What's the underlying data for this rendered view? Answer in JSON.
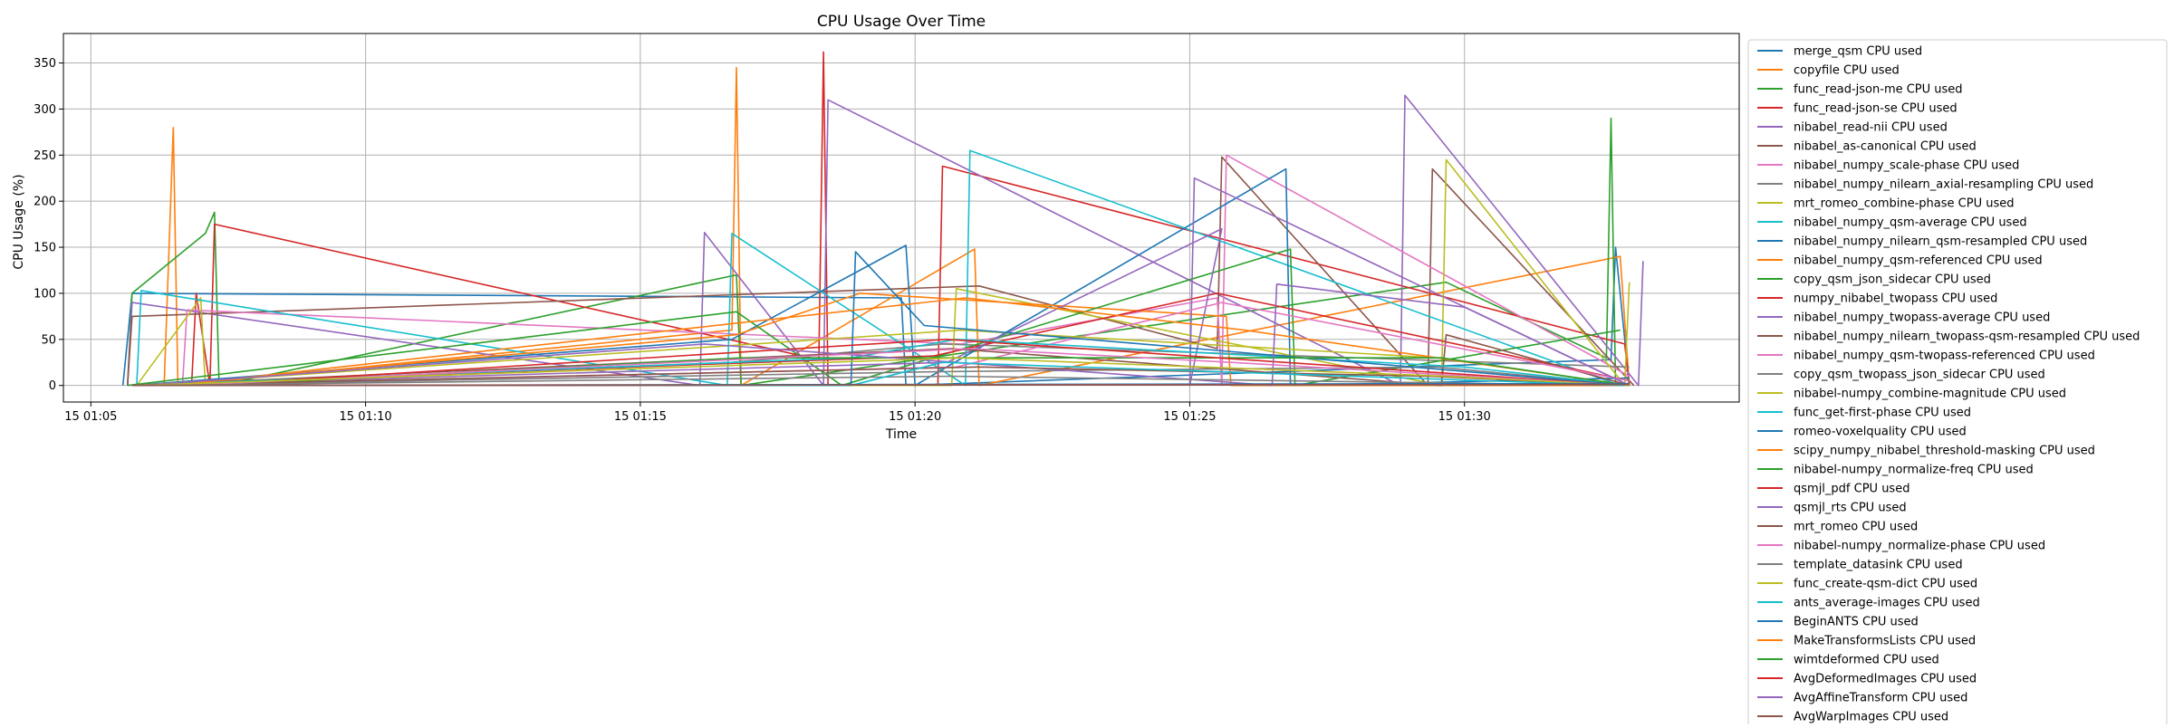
{
  "chart_data": {
    "type": "line",
    "title": "CPU Usage Over Time",
    "xlabel": "Time",
    "ylabel": "CPU Usage (%)",
    "xlim": [
      "2024-01-15T01:04:30",
      "2024-01-15T01:35:00"
    ],
    "ylim": [
      -18,
      382
    ],
    "x_ticks": [
      {
        "t": "2024-01-15T01:05:00",
        "label": "15 01:05"
      },
      {
        "t": "2024-01-15T01:10:00",
        "label": "15 01:10"
      },
      {
        "t": "2024-01-15T01:15:00",
        "label": "15 01:15"
      },
      {
        "t": "2024-01-15T01:20:00",
        "label": "15 01:20"
      },
      {
        "t": "2024-01-15T01:25:00",
        "label": "15 01:25"
      },
      {
        "t": "2024-01-15T01:30:00",
        "label": "15 01:30"
      }
    ],
    "y_ticks": [
      0,
      50,
      100,
      150,
      200,
      250,
      300,
      350
    ],
    "grid": true,
    "legend": "outside right, top",
    "series": [
      {
        "name": "merge_qsm CPU used",
        "color": "#1f77b4",
        "x": [
          "2024-01-15T01:05:35",
          "2024-01-15T01:05:45",
          "2024-01-15T01:19:45",
          "2024-01-15T01:19:50",
          "2024-01-15T01:32:40",
          "2024-01-15T01:32:45",
          "2024-01-15T01:33:00"
        ],
        "y": [
          0,
          100,
          95,
          0,
          28,
          150,
          0
        ]
      },
      {
        "name": "copyfile CPU used",
        "color": "#ff7f0e",
        "x": [
          "2024-01-15T01:06:20",
          "2024-01-15T01:06:25",
          "2024-01-15T01:06:30",
          "2024-01-15T01:06:35",
          "2024-01-15T01:16:40",
          "2024-01-15T01:16:45",
          "2024-01-15T01:16:50",
          "2024-01-15T01:21:05",
          "2024-01-15T01:21:10",
          "2024-01-15T01:32:50",
          "2024-01-15T01:33:00"
        ],
        "y": [
          0,
          140,
          280,
          0,
          60,
          345,
          0,
          148,
          0,
          140,
          0
        ]
      },
      {
        "name": "func_read-json-me CPU used",
        "color": "#2ca02c",
        "x": [
          "2024-01-15T01:05:40",
          "2024-01-15T01:05:45",
          "2024-01-15T01:07:05",
          "2024-01-15T01:07:15",
          "2024-01-15T01:07:20",
          "2024-01-15T01:16:45",
          "2024-01-15T01:16:50",
          "2024-01-15T01:29:40",
          "2024-01-15T01:32:35",
          "2024-01-15T01:32:40",
          "2024-01-15T01:32:45"
        ],
        "y": [
          0,
          100,
          165,
          188,
          0,
          120,
          0,
          112,
          30,
          290,
          0
        ]
      },
      {
        "name": "func_read-json-se CPU used",
        "color": "#d62728",
        "x": [
          "2024-01-15T01:06:50",
          "2024-01-15T01:06:55",
          "2024-01-15T01:07:10",
          "2024-01-15T01:07:15",
          "2024-01-15T01:18:15",
          "2024-01-15T01:18:20",
          "2024-01-15T01:18:25",
          "2024-01-15T01:20:25",
          "2024-01-15T01:20:30",
          "2024-01-15T01:32:55",
          "2024-01-15T01:33:00"
        ],
        "y": [
          0,
          100,
          0,
          175,
          28,
          362,
          0,
          0,
          238,
          45,
          0
        ]
      },
      {
        "name": "nibabel_read-nii CPU used",
        "color": "#9467bd",
        "x": [
          "2024-01-15T01:05:40",
          "2024-01-15T01:05:45",
          "2024-01-15T01:16:05",
          "2024-01-15T01:16:10",
          "2024-01-15T01:18:20",
          "2024-01-15T01:18:25",
          "2024-01-15T01:28:50",
          "2024-01-15T01:28:55",
          "2024-01-15T01:33:10",
          "2024-01-15T01:33:15"
        ],
        "y": [
          0,
          90,
          0,
          166,
          0,
          310,
          0,
          315,
          0,
          135
        ]
      },
      {
        "name": "nibabel_as-canonical CPU used",
        "color": "#8c564b",
        "x": [
          "2024-01-15T01:05:40",
          "2024-01-15T01:05:45",
          "2024-01-15T01:21:10",
          "2024-01-15T01:25:30",
          "2024-01-15T01:25:35",
          "2024-01-15T01:29:20",
          "2024-01-15T01:29:25",
          "2024-01-15T01:33:05"
        ],
        "y": [
          0,
          75,
          108,
          40,
          248,
          0,
          235,
          0
        ]
      },
      {
        "name": "nibabel_numpy_scale-phase CPU used",
        "color": "#e377c2",
        "x": [
          "2024-01-15T01:06:40",
          "2024-01-15T01:06:45",
          "2024-01-15T01:20:50",
          "2024-01-15T01:25:30",
          "2024-01-15T01:25:35",
          "2024-01-15T01:25:40",
          "2024-01-15T01:33:00"
        ],
        "y": [
          0,
          82,
          45,
          95,
          0,
          250,
          10
        ]
      },
      {
        "name": "nibabel_numpy_nilearn_axial-resampling CPU used",
        "color": "#7f7f7f",
        "x": [
          "2024-01-15T01:05:50",
          "2024-01-15T01:16:40",
          "2024-01-15T01:20:30",
          "2024-01-15T01:33:00"
        ],
        "y": [
          0,
          25,
          45,
          20
        ]
      },
      {
        "name": "mrt_romeo_combine-phase CPU used",
        "color": "#bcbd22",
        "x": [
          "2024-01-15T01:05:50",
          "2024-01-15T01:07:00",
          "2024-01-15T01:07:05",
          "2024-01-15T01:20:40",
          "2024-01-15T01:20:45",
          "2024-01-15T01:29:35",
          "2024-01-15T01:29:40",
          "2024-01-15T01:32:55",
          "2024-01-15T01:33:00"
        ],
        "y": [
          0,
          95,
          0,
          0,
          105,
          0,
          245,
          0,
          112
        ]
      },
      {
        "name": "nibabel_numpy_qsm-average CPU used",
        "color": "#17becf",
        "x": [
          "2024-01-15T01:05:50",
          "2024-01-15T01:05:55",
          "2024-01-15T01:16:35",
          "2024-01-15T01:16:40",
          "2024-01-15T01:20:55",
          "2024-01-15T01:21:00",
          "2024-01-15T01:32:50"
        ],
        "y": [
          0,
          103,
          0,
          165,
          0,
          255,
          0
        ]
      },
      {
        "name": "nibabel_numpy_nilearn_qsm-resampled CPU used",
        "color": "#1f77b4",
        "x": [
          "2024-01-15T01:05:45",
          "2024-01-15T01:16:40",
          "2024-01-15T01:19:50",
          "2024-01-15T01:20:00",
          "2024-01-15T01:26:45",
          "2024-01-15T01:26:50",
          "2024-01-15T01:33:00"
        ],
        "y": [
          0,
          50,
          152,
          0,
          235,
          0,
          8
        ]
      },
      {
        "name": "nibabel_numpy_qsm-referenced CPU used",
        "color": "#ff7f0e",
        "x": [
          "2024-01-15T01:06:15",
          "2024-01-15T01:16:45",
          "2024-01-15T01:19:00",
          "2024-01-15T01:25:40",
          "2024-01-15T01:25:45",
          "2024-01-15T01:32:55"
        ],
        "y": [
          0,
          55,
          100,
          75,
          0,
          0
        ]
      },
      {
        "name": "copy_qsm_json_sidecar CPU used",
        "color": "#2ca02c",
        "x": [
          "2024-01-15T01:05:40",
          "2024-01-15T01:16:45",
          "2024-01-15T01:18:40",
          "2024-01-15T01:26:50",
          "2024-01-15T01:26:55",
          "2024-01-15T01:32:50"
        ],
        "y": [
          0,
          80,
          0,
          148,
          0,
          60
        ]
      },
      {
        "name": "numpy_nibabel_twopass CPU used",
        "color": "#d62728",
        "x": [
          "2024-01-15T01:05:45",
          "2024-01-15T01:18:30",
          "2024-01-15T01:20:20",
          "2024-01-15T01:25:30",
          "2024-01-15T01:33:00"
        ],
        "y": [
          0,
          28,
          32,
          100,
          5
        ]
      },
      {
        "name": "nibabel_numpy_twopass-average CPU used",
        "color": "#9467bd",
        "x": [
          "2024-01-15T01:05:50",
          "2024-01-15T01:20:35",
          "2024-01-15T01:25:35",
          "2024-01-15T01:25:00",
          "2024-01-15T01:25:05",
          "2024-01-15T01:33:00"
        ],
        "y": [
          0,
          25,
          170,
          0,
          225,
          0
        ]
      },
      {
        "name": "nibabel_numpy_nilearn_twopass-qsm-resampled CPU used",
        "color": "#8c564b",
        "x": [
          "2024-01-15T01:05:50",
          "2024-01-15T01:20:40",
          "2024-01-15T01:29:35",
          "2024-01-15T01:29:40",
          "2024-01-15T01:33:00"
        ],
        "y": [
          0,
          40,
          0,
          55,
          0
        ]
      },
      {
        "name": "nibabel_numpy_qsm-twopass-referenced CPU used",
        "color": "#e377c2",
        "x": [
          "2024-01-15T01:06:45",
          "2024-01-15T01:20:45",
          "2024-01-15T01:25:35",
          "2024-01-15T01:33:00"
        ],
        "y": [
          0,
          20,
          90,
          5
        ]
      },
      {
        "name": "copy_qsm_twopass_json_sidecar CPU used",
        "color": "#7f7f7f",
        "x": [
          "2024-01-15T01:05:55",
          "2024-01-15T01:20:30",
          "2024-01-15T01:29:30",
          "2024-01-15T01:33:00"
        ],
        "y": [
          0,
          15,
          20,
          0
        ]
      },
      {
        "name": "nibabel-numpy_combine-magnitude CPU used",
        "color": "#bcbd22",
        "x": [
          "2024-01-15T01:05:50",
          "2024-01-15T01:20:50",
          "2024-01-15T01:29:30",
          "2024-01-15T01:33:00"
        ],
        "y": [
          0,
          60,
          30,
          0
        ]
      },
      {
        "name": "func_get-first-phase CPU used",
        "color": "#17becf",
        "x": [
          "2024-01-15T01:05:50",
          "2024-01-15T01:18:50",
          "2024-01-15T01:20:45",
          "2024-01-15T01:30:00",
          "2024-01-15T01:33:00"
        ],
        "y": [
          0,
          30,
          50,
          20,
          0
        ]
      },
      {
        "name": "romeo-voxelquality CPU used",
        "color": "#1f77b4",
        "x": [
          "2024-01-15T01:05:50",
          "2024-01-15T01:18:50",
          "2024-01-15T01:18:55",
          "2024-01-15T01:20:10",
          "2024-01-15T01:33:00"
        ],
        "y": [
          0,
          0,
          145,
          65,
          0
        ]
      },
      {
        "name": "scipy_numpy_nibabel_threshold-masking CPU used",
        "color": "#ff7f0e",
        "x": [
          "2024-01-15T01:06:30",
          "2024-01-15T01:20:55",
          "2024-01-15T01:26:00",
          "2024-01-15T01:33:00"
        ],
        "y": [
          0,
          95,
          60,
          0
        ]
      },
      {
        "name": "nibabel-numpy_normalize-freq CPU used",
        "color": "#2ca02c",
        "x": [
          "2024-01-15T01:07:10",
          "2024-01-15T01:16:50",
          "2024-01-15T01:29:35",
          "2024-01-15T01:33:00"
        ],
        "y": [
          0,
          30,
          30,
          0
        ]
      },
      {
        "name": "qsmjl_pdf CPU used",
        "color": "#d62728",
        "x": [
          "2024-01-15T01:07:00",
          "2024-01-15T01:20:35",
          "2024-01-15T01:25:30",
          "2024-01-15T01:33:00"
        ],
        "y": [
          0,
          50,
          30,
          0
        ]
      },
      {
        "name": "qsmjl_rts CPU used",
        "color": "#9467bd",
        "x": [
          "2024-01-15T01:05:55",
          "2024-01-15T01:16:10",
          "2024-01-15T01:26:30",
          "2024-01-15T01:26:35",
          "2024-01-15T01:30:00",
          "2024-01-15T01:33:00"
        ],
        "y": [
          0,
          45,
          0,
          110,
          85,
          0
        ]
      },
      {
        "name": "mrt_romeo CPU used",
        "color": "#8c564b",
        "x": [
          "2024-01-15T01:05:50",
          "2024-01-15T01:21:10",
          "2024-01-15T01:29:20",
          "2024-01-15T01:33:00"
        ],
        "y": [
          0,
          20,
          10,
          0
        ]
      },
      {
        "name": "nibabel-numpy_normalize-phase CPU used",
        "color": "#e377c2",
        "x": [
          "2024-01-15T01:06:40",
          "2024-01-15T01:21:00",
          "2024-01-15T01:25:45",
          "2024-01-15T01:33:00"
        ],
        "y": [
          0,
          40,
          25,
          0
        ]
      },
      {
        "name": "template_datasink CPU used",
        "color": "#7f7f7f",
        "x": [
          "2024-01-15T01:05:50",
          "2024-01-15T01:20:40",
          "2024-01-15T01:33:00"
        ],
        "y": [
          0,
          10,
          0
        ]
      },
      {
        "name": "func_create-qsm-dict CPU used",
        "color": "#bcbd22",
        "x": [
          "2024-01-15T01:05:50",
          "2024-01-15T01:20:50",
          "2024-01-15T01:29:40",
          "2024-01-15T01:33:00"
        ],
        "y": [
          0,
          30,
          10,
          0
        ]
      },
      {
        "name": "ants_average-images CPU used",
        "color": "#17becf",
        "x": [
          "2024-01-15T01:05:45",
          "2024-01-15T01:18:50",
          "2024-01-15T01:20:30",
          "2024-01-15T01:32:55"
        ],
        "y": [
          0,
          0,
          25,
          0
        ]
      },
      {
        "name": "BeginANTS CPU used",
        "color": "#1f77b4",
        "x": [
          "2024-01-15T01:05:45",
          "2024-01-15T01:33:00"
        ],
        "y": [
          0,
          2
        ]
      },
      {
        "name": "MakeTransformsLists CPU used",
        "color": "#ff7f0e",
        "x": [
          "2024-01-15T01:05:45",
          "2024-01-15T01:33:00"
        ],
        "y": [
          0,
          1
        ]
      },
      {
        "name": "wimtdeformed CPU used",
        "color": "#2ca02c",
        "x": [
          "2024-01-15T01:05:45",
          "2024-01-15T01:33:00"
        ],
        "y": [
          0,
          1
        ]
      },
      {
        "name": "AvgDeformedImages CPU used",
        "color": "#d62728",
        "x": [
          "2024-01-15T01:05:45",
          "2024-01-15T01:33:00"
        ],
        "y": [
          0,
          1
        ]
      },
      {
        "name": "AvgAffineTransform CPU used",
        "color": "#9467bd",
        "x": [
          "2024-01-15T01:05:45",
          "2024-01-15T01:33:00"
        ],
        "y": [
          0,
          1
        ]
      },
      {
        "name": "AvgWarpImages CPU used",
        "color": "#8c564b",
        "x": [
          "2024-01-15T01:05:45",
          "2024-01-15T01:33:00"
        ],
        "y": [
          0,
          1
        ]
      }
    ]
  }
}
